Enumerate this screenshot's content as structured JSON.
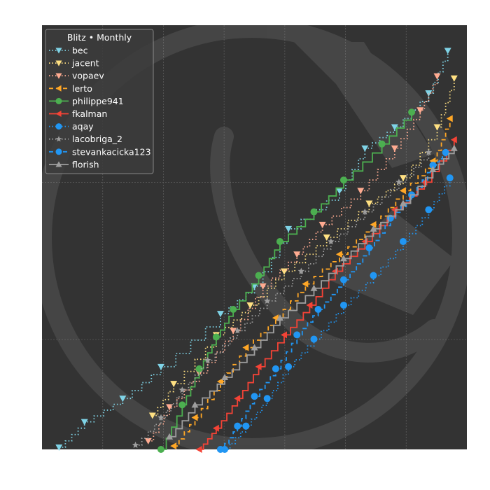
{
  "chart_data": {
    "type": "line",
    "style": "step",
    "background": "#333333",
    "grid": true,
    "legend": {
      "title": "Blitz • Monthly",
      "placement": "top-left"
    },
    "xlim": [
      0,
      100
    ],
    "ylim": [
      0,
      100
    ],
    "watermark": "faint chess-knight logo",
    "series": [
      {
        "name": "bec",
        "color": "#7fd3e6",
        "linestyle": "dotted",
        "marker": "triangle-down",
        "points": [
          [
            4,
            0.5
          ],
          [
            10,
            6.5
          ],
          [
            19,
            12
          ],
          [
            28,
            19.5
          ],
          [
            42,
            32
          ],
          [
            50,
            38.5
          ],
          [
            58,
            52
          ],
          [
            70,
            61
          ],
          [
            76,
            71
          ],
          [
            83,
            76
          ],
          [
            91,
            84
          ],
          [
            95.5,
            94
          ]
        ]
      },
      {
        "name": "jacent",
        "color": "#ffe082",
        "linestyle": "dotted",
        "marker": "triangle-down",
        "points": [
          [
            26,
            8
          ],
          [
            31,
            15.5
          ],
          [
            41,
            27
          ],
          [
            49,
            34
          ],
          [
            57,
            42
          ],
          [
            67,
            50
          ],
          [
            77,
            58
          ],
          [
            85,
            64
          ],
          [
            93,
            76
          ],
          [
            97,
            87.5
          ]
        ]
      },
      {
        "name": "vopaev",
        "color": "#ffab91",
        "linestyle": "dotted",
        "marker": "triangle-down",
        "points": [
          [
            25,
            2
          ],
          [
            30,
            10
          ],
          [
            37,
            18
          ],
          [
            45,
            28
          ],
          [
            52,
            38.5
          ],
          [
            60,
            46
          ],
          [
            66,
            53
          ],
          [
            75,
            61
          ],
          [
            83,
            71
          ],
          [
            89,
            80
          ],
          [
            93,
            88
          ]
        ]
      },
      {
        "name": "lerto",
        "color": "#ffa726",
        "linestyle": "dashed",
        "marker": "triangle-left",
        "points": [
          [
            31,
            0.8
          ],
          [
            36,
            7.5
          ],
          [
            42,
            16
          ],
          [
            48,
            24
          ],
          [
            55,
            31
          ],
          [
            62,
            39
          ],
          [
            70,
            46
          ],
          [
            78,
            53
          ],
          [
            85,
            61
          ],
          [
            92,
            68
          ],
          [
            96,
            78
          ]
        ]
      },
      {
        "name": "philippe941",
        "color": "#4caf50",
        "linestyle": "solid",
        "marker": "circle",
        "points": [
          [
            28,
            0
          ],
          [
            33,
            10.5
          ],
          [
            37,
            19
          ],
          [
            41,
            26.5
          ],
          [
            45,
            33
          ],
          [
            51,
            41
          ],
          [
            56,
            49
          ],
          [
            64,
            56
          ],
          [
            71,
            63.5
          ],
          [
            80,
            72
          ],
          [
            87,
            79.5
          ]
        ]
      },
      {
        "name": "fkalman",
        "color": "#f44336",
        "linestyle": "solid",
        "marker": "triangle-left",
        "points": [
          [
            37,
            0
          ],
          [
            41,
            5
          ],
          [
            46,
            12
          ],
          [
            51,
            19.5
          ],
          [
            57,
            27
          ],
          [
            63,
            34
          ],
          [
            69,
            42
          ],
          [
            76,
            49
          ],
          [
            83,
            56.5
          ],
          [
            90,
            63
          ],
          [
            97,
            73
          ]
        ]
      },
      {
        "name": "aqay",
        "color": "#2196f3",
        "linestyle": "dotted",
        "marker": "circle",
        "points": [
          [
            43,
            0
          ],
          [
            48,
            5.5
          ],
          [
            53,
            12
          ],
          [
            58,
            19.5
          ],
          [
            64,
            26
          ],
          [
            71,
            34
          ],
          [
            78,
            41
          ],
          [
            85,
            49
          ],
          [
            91,
            56.5
          ],
          [
            96,
            64
          ]
        ]
      },
      {
        "name": "lacobriga_2",
        "color": "#9e9e9e",
        "linestyle": "dotted",
        "marker": "star",
        "points": [
          [
            22,
            1
          ],
          [
            28,
            7.5
          ],
          [
            33,
            14
          ],
          [
            39,
            21
          ],
          [
            46,
            28
          ],
          [
            53,
            35
          ],
          [
            61,
            42
          ],
          [
            68,
            49
          ],
          [
            76,
            56
          ],
          [
            84,
            63
          ],
          [
            91,
            70
          ]
        ]
      },
      {
        "name": "stevankacicka123",
        "color": "#2196f3",
        "linestyle": "dashed",
        "marker": "circle",
        "points": [
          [
            42,
            0
          ],
          [
            46,
            5.5
          ],
          [
            50,
            12.5
          ],
          [
            55,
            19
          ],
          [
            60,
            27
          ],
          [
            65,
            33
          ],
          [
            71,
            40
          ],
          [
            77,
            47.5
          ],
          [
            82,
            54.5
          ],
          [
            87,
            60
          ],
          [
            92,
            67
          ],
          [
            95,
            70
          ]
        ]
      },
      {
        "name": "florish",
        "color": "#9e9e9e",
        "linestyle": "solid",
        "marker": "triangle-up",
        "points": [
          [
            30,
            3
          ],
          [
            36,
            10.5
          ],
          [
            43,
            17
          ],
          [
            50,
            24
          ],
          [
            56,
            31
          ],
          [
            64,
            38
          ],
          [
            71,
            45
          ],
          [
            78,
            52
          ],
          [
            85,
            58
          ],
          [
            92,
            66
          ],
          [
            97,
            71
          ]
        ]
      }
    ]
  }
}
